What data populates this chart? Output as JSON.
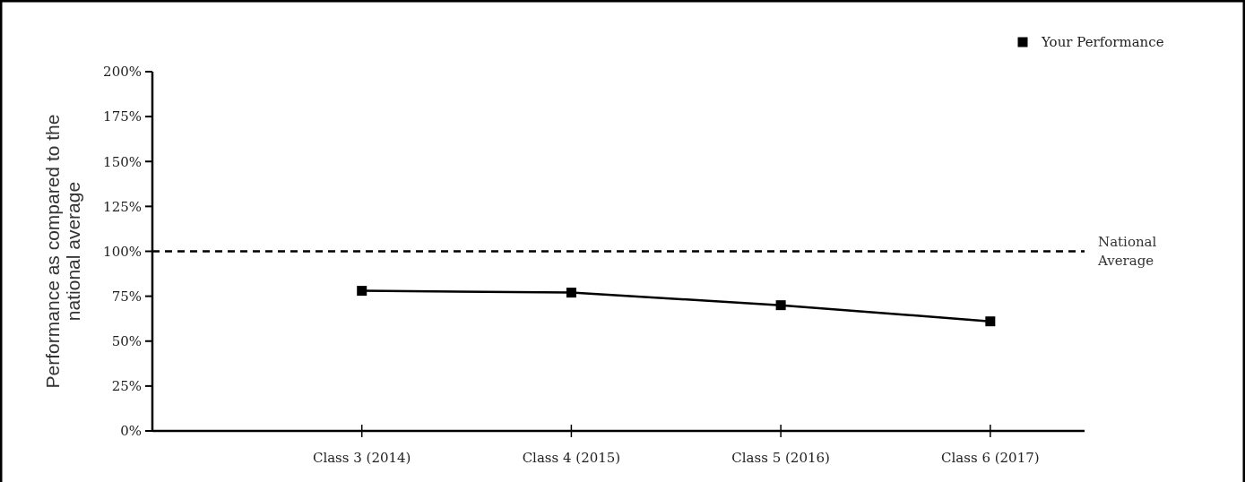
{
  "chart_data": {
    "type": "line",
    "ylabel": "Performance as compared to the national average",
    "categories": [
      "Class 3 (2014)",
      "Class 4 (2015)",
      "Class 5 (2016)",
      "Class 6 (2017)"
    ],
    "series": [
      {
        "name": "Your Performance",
        "color": "#000000",
        "values": [
          78,
          77,
          70,
          61
        ]
      }
    ],
    "ylim": [
      0,
      200
    ],
    "yticks": [
      {
        "value": 0,
        "label": "0%"
      },
      {
        "value": 25,
        "label": "25%"
      },
      {
        "value": 50,
        "label": "50%"
      },
      {
        "value": 75,
        "label": "75%"
      },
      {
        "value": 100,
        "label": "100%"
      },
      {
        "value": 125,
        "label": "125%"
      },
      {
        "value": 150,
        "label": "150%"
      },
      {
        "value": 175,
        "label": "175%"
      },
      {
        "value": 200,
        "label": "200%"
      }
    ],
    "ref_lines": [
      {
        "axis": "y",
        "value": 100,
        "label": "National Average",
        "color": "#000000",
        "line_style": "dashed"
      }
    ],
    "marker": "square",
    "line_style": "solid",
    "legend": "top right",
    "grid": false
  }
}
